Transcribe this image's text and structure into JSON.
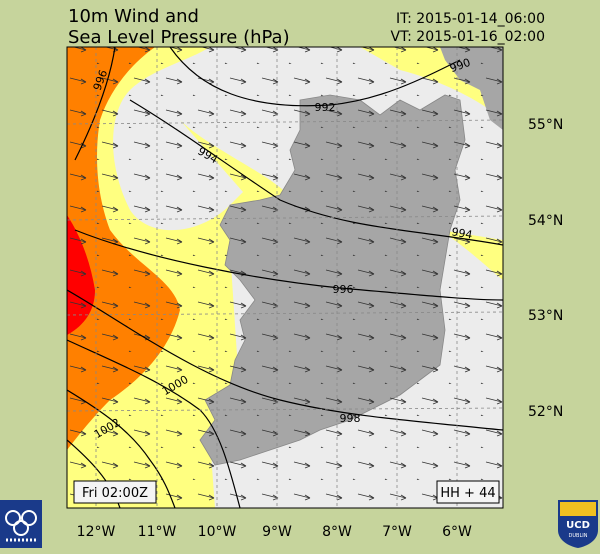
{
  "header": {
    "title_lines": [
      "10m Wind and",
      "Sea Level Pressure (hPa)"
    ],
    "init_time": "IT: 2015-01-14_06:00",
    "valid_time": "VT: 2015-01-16_02:00"
  },
  "map": {
    "longitude_labels": [
      "12°W",
      "11°W",
      "10°W",
      "9°W",
      "8°W",
      "7°W",
      "6°W"
    ],
    "latitude_labels": [
      "55°N",
      "54°N",
      "53°N",
      "52°N"
    ],
    "isobar_labels": [
      996,
      992,
      994,
      990,
      994,
      996,
      998,
      1000,
      1002
    ]
  },
  "footer": {
    "valid_day_time": "Fri 02:00Z",
    "forecast_hour": "HH + 44",
    "logo_text": [
      "UCD",
      "DUBLIN"
    ]
  }
}
